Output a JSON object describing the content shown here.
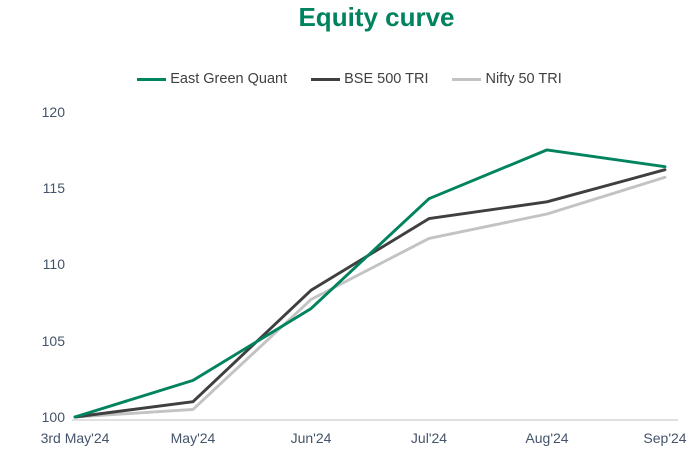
{
  "chart_data": {
    "type": "line",
    "title": "Equity curve",
    "categories": [
      "3rd May'24",
      "May'24",
      "Jun'24",
      "Jul'24",
      "Aug'24",
      "Sep'24"
    ],
    "series": [
      {
        "name": "East Green Quant",
        "color": "#00835E",
        "values": [
          100,
          102.4,
          107.1,
          114.3,
          117.5,
          116.4
        ]
      },
      {
        "name": "BSE 500 TRI",
        "color": "#3F3F3F",
        "values": [
          100,
          101.0,
          108.3,
          113.0,
          114.1,
          116.2
        ]
      },
      {
        "name": "Nifty 50 TRI",
        "color": "#C3C3C3",
        "values": [
          100,
          100.5,
          107.7,
          111.7,
          113.3,
          115.7
        ]
      }
    ],
    "yticks": [
      100,
      105,
      110,
      115,
      120
    ],
    "ylim": [
      100,
      120
    ],
    "grid": false,
    "legend_position": "top",
    "colors": {
      "title": "#00835E",
      "axis_line": "#D6D6D6",
      "tick_labels": "#44546A",
      "legend_text": "#404040",
      "background": "#FFFFFF"
    }
  }
}
